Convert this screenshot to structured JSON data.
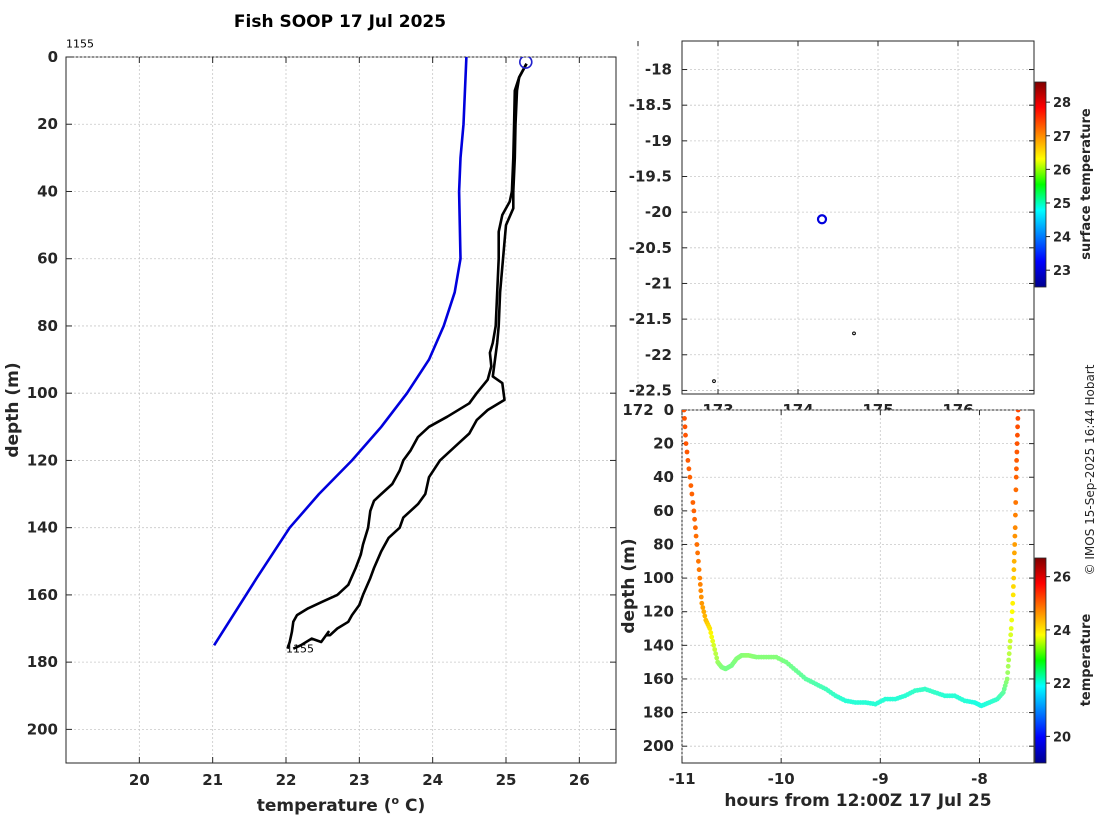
{
  "title": "Fish SOOP 17 Jul 2025",
  "credit": "© IMOS 15-Sep-2025 16:44 Hobart",
  "chart_data": [
    {
      "type": "line",
      "panel": "profile",
      "xlabel": "temperature (° C)",
      "ylabel": "depth (m)",
      "xlim": [
        19,
        26.5
      ],
      "ylim": [
        0,
        210
      ],
      "y_reversed": true,
      "grid": true,
      "xticks": [
        20,
        21,
        22,
        23,
        24,
        25,
        26
      ],
      "yticks": [
        0,
        20,
        40,
        60,
        80,
        100,
        120,
        140,
        160,
        180,
        200
      ],
      "annotations": [
        {
          "text": "1155",
          "x": 19,
          "y": -4
        },
        {
          "text": "1155",
          "x": 22.0,
          "y": 176
        }
      ],
      "series": [
        {
          "color": "#0000dd",
          "x": [
            24.46,
            24.42,
            24.38,
            24.36,
            24.37,
            24.38,
            24.3,
            24.15,
            23.95,
            23.65,
            23.3,
            22.9,
            22.45,
            22.05,
            21.6,
            21.02
          ],
          "y": [
            0,
            20,
            30,
            40,
            50,
            60,
            70,
            80,
            90,
            100,
            110,
            120,
            130,
            140,
            155,
            175
          ]
        },
        {
          "color": "#000000",
          "x": [
            25.28,
            25.18,
            25.12,
            25.11,
            25.1,
            25.08,
            25.05,
            24.95,
            24.9,
            24.9,
            24.88,
            24.86,
            24.82,
            24.78,
            24.8,
            24.75,
            24.6,
            24.5,
            24.2,
            23.95,
            23.8,
            23.7,
            23.6,
            23.55,
            23.45,
            23.3,
            23.2,
            23.15,
            23.12,
            23.05,
            23.02,
            22.95,
            22.85,
            22.7,
            22.5,
            22.3,
            22.15,
            22.1,
            22.08,
            22.05,
            22.02
          ],
          "y": [
            2,
            6,
            10,
            20,
            30,
            40,
            43,
            47,
            52,
            60,
            70,
            80,
            85,
            88,
            92,
            96,
            100,
            103,
            107,
            110,
            113,
            117,
            120,
            123,
            127,
            130,
            132,
            135,
            140,
            145,
            148,
            152,
            157,
            160,
            162,
            164,
            166,
            168,
            171,
            174,
            176
          ]
        },
        {
          "color": "#000000",
          "x": [
            25.28,
            25.18,
            25.15,
            25.13,
            25.12,
            25.1,
            25.1,
            25.0,
            24.98,
            24.92,
            24.9,
            24.88,
            24.82,
            24.95,
            24.98,
            24.75,
            24.6,
            24.5,
            24.35,
            24.1,
            23.95,
            23.9,
            23.8,
            23.6,
            23.55,
            23.4,
            23.3,
            23.2,
            23.15,
            23.05,
            23.0,
            22.9,
            22.85,
            22.7,
            22.6,
            22.55,
            22.58,
            22.48,
            22.35,
            22.2,
            22.1
          ],
          "y": [
            2,
            6,
            10,
            20,
            30,
            40,
            45,
            50,
            55,
            70,
            80,
            85,
            95,
            97,
            102,
            105,
            108,
            112,
            115,
            120,
            125,
            130,
            133,
            137,
            140,
            143,
            147,
            152,
            155,
            160,
            163,
            166,
            168,
            170,
            172,
            172,
            171,
            174,
            173,
            175,
            176
          ]
        }
      ],
      "markers": [
        {
          "shape": "circle",
          "color": "#2222cc",
          "x": 25.27,
          "y": 1.5
        }
      ]
    },
    {
      "type": "scatter",
      "panel": "map",
      "xlim": [
        172.55,
        176.95
      ],
      "ylim": [
        -22.55,
        -17.6
      ],
      "yticks": [
        -18,
        -18.5,
        -19,
        -19.5,
        -20,
        -20.5,
        -21,
        -21.5,
        -22,
        -22.5
      ],
      "xticks_partially_visible": [
        "172",
        "173",
        "174",
        "175",
        "176"
      ],
      "grid": true,
      "points": [
        {
          "x": 172.95,
          "y": -22.37,
          "size": "small",
          "color": "#000000"
        },
        {
          "x": 174.7,
          "y": -21.7,
          "size": "small",
          "color": "#000000"
        },
        {
          "x": 174.3,
          "y": -20.1,
          "size": "circle",
          "color": "#0000dd"
        }
      ],
      "colorbar": {
        "label": "surface temperature",
        "range": [
          22.5,
          28.6
        ],
        "ticks": [
          23,
          24,
          25,
          26,
          27,
          28
        ]
      }
    },
    {
      "type": "scatter",
      "panel": "section",
      "xlabel": "hours from 12:00Z 17 Jul 25",
      "ylabel": "depth (m)",
      "xlim": [
        -11,
        -7.45
      ],
      "ylim": [
        0,
        210
      ],
      "y_reversed": true,
      "grid": true,
      "xticks": [
        -11,
        -10,
        -9,
        -8
      ],
      "yticks": [
        0,
        20,
        40,
        60,
        80,
        100,
        120,
        140,
        160,
        180,
        200
      ],
      "colorbar": {
        "label": "temperature",
        "range": [
          19,
          26.7
        ],
        "ticks": [
          20,
          22,
          24,
          26
        ]
      },
      "colored_track": {
        "x": [
          -10.98,
          -10.96,
          -10.92,
          -10.88,
          -10.85,
          -10.82,
          -10.8,
          -10.76,
          -10.72,
          -10.68,
          -10.64,
          -10.6,
          -10.56,
          -10.5,
          -10.45,
          -10.4,
          -10.33,
          -10.25,
          -10.15,
          -10.05,
          -9.95,
          -9.85,
          -9.75,
          -9.65,
          -9.55,
          -9.45,
          -9.35,
          -9.25,
          -9.15,
          -9.05,
          -8.95,
          -8.85,
          -8.75,
          -8.65,
          -8.55,
          -8.45,
          -8.35,
          -8.25,
          -8.15,
          -8.05,
          -7.98,
          -7.9,
          -7.82,
          -7.76,
          -7.72,
          -7.7,
          -7.68,
          -7.66,
          -7.65,
          -7.64,
          -7.63,
          -7.62,
          -7.61
        ],
        "y": [
          0,
          20,
          40,
          60,
          80,
          100,
          115,
          125,
          130,
          140,
          150,
          153,
          154,
          152,
          148,
          146,
          146,
          147,
          147,
          147,
          150,
          155,
          160,
          163,
          166,
          170,
          173,
          174,
          174,
          175,
          172,
          172,
          170,
          167,
          166,
          168,
          170,
          170,
          173,
          174,
          176,
          174,
          172,
          168,
          160,
          145,
          130,
          110,
          90,
          70,
          40,
          20,
          0
        ],
        "t": [
          25.1,
          25.1,
          25.0,
          25.0,
          24.9,
          24.8,
          24.6,
          24.3,
          24.0,
          23.5,
          23.1,
          22.9,
          22.8,
          22.8,
          22.9,
          22.9,
          23.0,
          22.9,
          22.9,
          22.9,
          22.8,
          22.7,
          22.6,
          22.5,
          22.4,
          22.3,
          22.2,
          22.2,
          22.2,
          22.2,
          22.2,
          22.2,
          22.2,
          22.3,
          22.3,
          22.3,
          22.2,
          22.2,
          22.2,
          22.1,
          22.1,
          22.2,
          22.3,
          22.6,
          23.0,
          23.3,
          23.6,
          24.0,
          24.4,
          24.7,
          25.0,
          25.1,
          25.2
        ]
      }
    }
  ]
}
